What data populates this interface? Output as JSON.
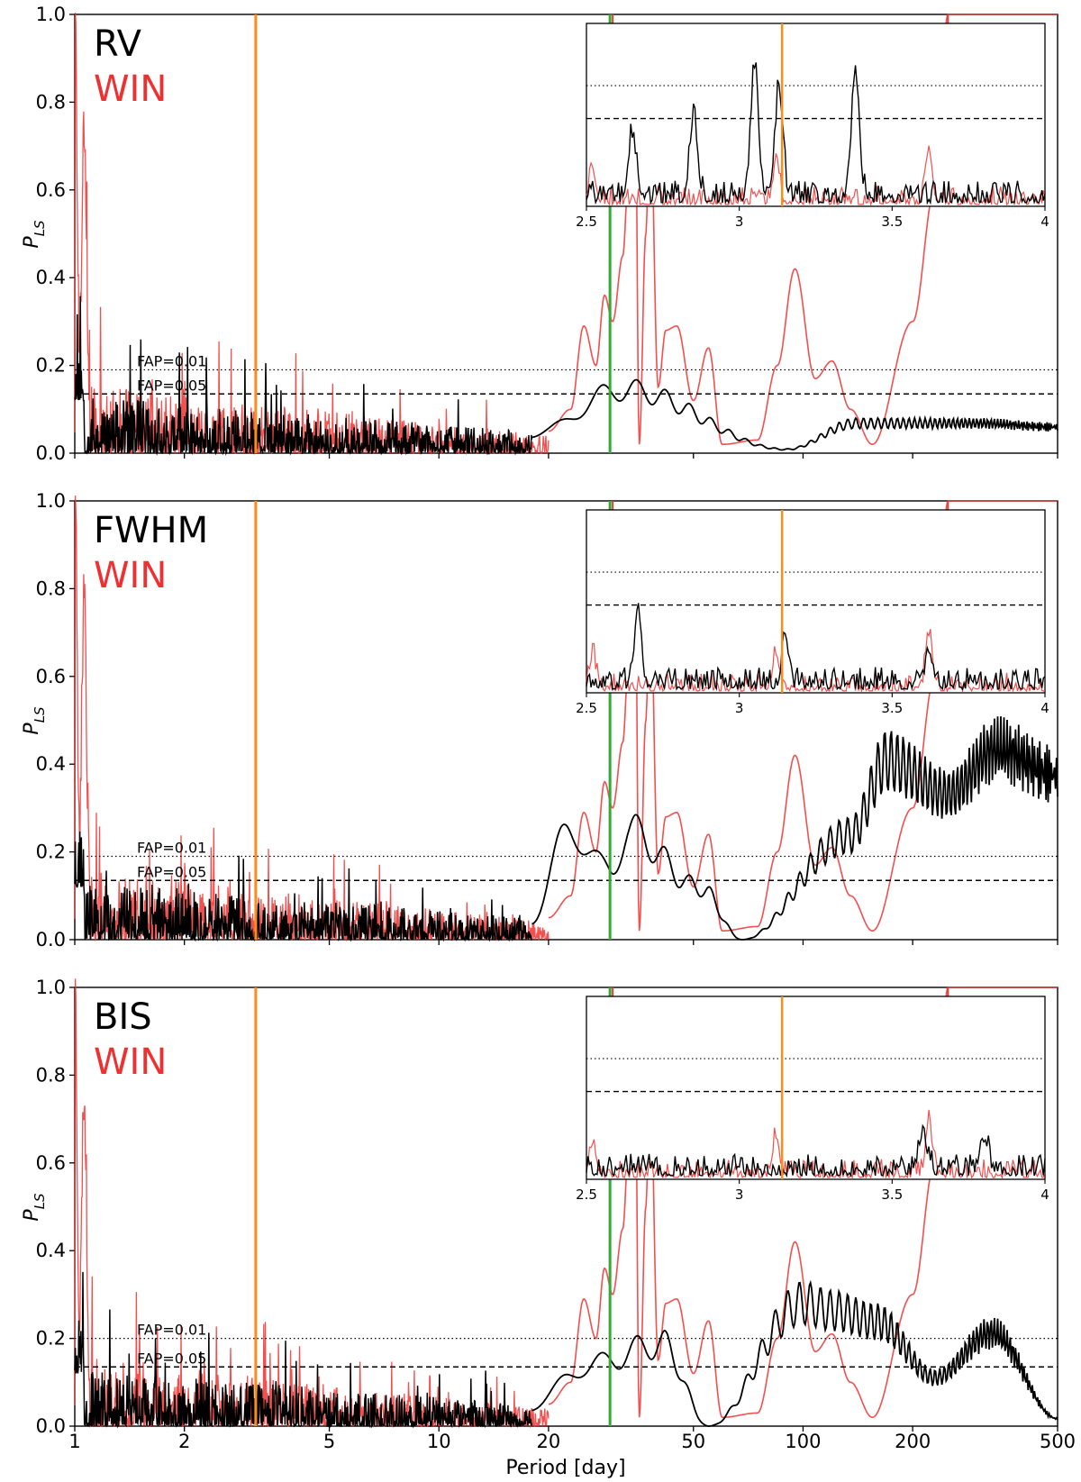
{
  "colors": {
    "data": "#000000",
    "window": "#f03030",
    "orange_marker": "#ff8c1a",
    "green_marker": "#33aa33",
    "red_marker": "#e03c3c"
  },
  "chart_data": {
    "type": "line",
    "xlabel": "Period [day]",
    "xscale": "log",
    "xlim": [
      1,
      500
    ],
    "x_ticks": [
      1,
      2,
      5,
      10,
      20,
      50,
      100,
      200,
      500
    ],
    "x_tick_labels": [
      "1",
      "2",
      "5",
      "10",
      "20",
      "50",
      "100",
      "200",
      "500"
    ],
    "ylabel_main": "P",
    "ylabel_sub": "LS",
    "ylim": [
      0,
      1
    ],
    "y_ticks": [
      0,
      0.2,
      0.4,
      0.6,
      0.8,
      1.0
    ],
    "y_tick_labels": [
      "0.0",
      "0.2",
      "0.4",
      "0.6",
      "0.8",
      "1.0"
    ],
    "marker_periods": {
      "orange": 3.14,
      "green": 29.5,
      "red_top": 250
    },
    "inset": {
      "xlim": [
        2.5,
        4
      ],
      "x_ticks": [
        2.5,
        3,
        3.5,
        4
      ],
      "x_tick_labels": [
        "2.5",
        "3",
        "3.5",
        "4"
      ]
    },
    "window_series": {
      "name": "WIN",
      "peaks": [
        [
          1.0,
          1.0
        ],
        [
          1.06,
          0.7
        ],
        [
          25,
          0.29
        ],
        [
          28.5,
          0.36
        ],
        [
          32,
          0.45
        ],
        [
          34.5,
          0.9
        ],
        [
          38,
          0.78
        ],
        [
          45,
          0.29
        ],
        [
          55,
          0.24
        ],
        [
          95,
          0.42
        ],
        [
          120,
          0.21
        ],
        [
          155,
          0.02
        ],
        [
          250,
          0.9
        ]
      ]
    },
    "panels": [
      {
        "label": "RV",
        "window_label": "WIN",
        "fap_01": 0.19,
        "fap_05": 0.135,
        "fap_01_label": "FAP=0.01",
        "fap_05_label": "FAP=0.05",
        "series_peaks": [
          [
            1.03,
            0.18
          ],
          [
            1.5,
            0.24
          ],
          [
            3.14,
            0.22
          ],
          [
            3.4,
            0.21
          ],
          [
            10.5,
            0.13
          ],
          [
            16.5,
            0.16
          ],
          [
            32,
            0.17
          ],
          [
            90,
            0.01
          ],
          [
            140,
            0.08
          ],
          [
            300,
            0.08
          ],
          [
            500,
            0.07
          ]
        ]
      },
      {
        "label": "FWHM",
        "window_label": "WIN",
        "fap_01": 0.19,
        "fap_05": 0.135,
        "fap_01_label": "FAP=0.01",
        "fap_05_label": "FAP=0.05",
        "series_peaks": [
          [
            1.03,
            0.3
          ],
          [
            2.2,
            0.15
          ],
          [
            5.2,
            0.14
          ],
          [
            23,
            0.3
          ],
          [
            29.5,
            0.18
          ],
          [
            33,
            0.29
          ],
          [
            52,
            0.14
          ],
          [
            68,
            0.0
          ],
          [
            135,
            0.28
          ],
          [
            170,
            0.48
          ],
          [
            250,
            0.39
          ],
          [
            340,
            0.51
          ],
          [
            500,
            0.44
          ]
        ]
      },
      {
        "label": "BIS",
        "window_label": "WIN",
        "fap_01": 0.2,
        "fap_05": 0.135,
        "fap_01_label": "FAP=0.01",
        "fap_05_label": "FAP=0.05",
        "series_peaks": [
          [
            1.05,
            0.27
          ],
          [
            3.5,
            0.09
          ],
          [
            25,
            0.16
          ],
          [
            41,
            0.22
          ],
          [
            55,
            0.0
          ],
          [
            100,
            0.33
          ],
          [
            120,
            0.31
          ],
          [
            160,
            0.28
          ],
          [
            230,
            0.13
          ],
          [
            330,
            0.25
          ],
          [
            500,
            0.02
          ]
        ]
      }
    ]
  }
}
